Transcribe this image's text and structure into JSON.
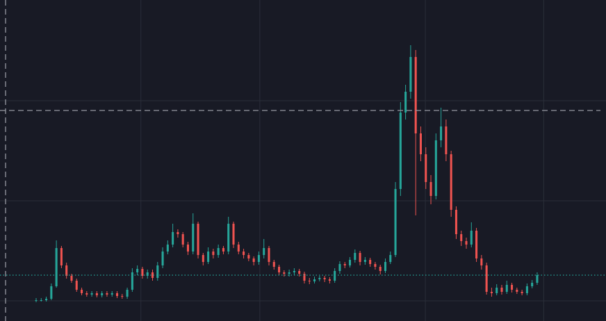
{
  "chart_data": {
    "type": "candlestick",
    "up_color": "#26a69a",
    "down_color": "#ef5350",
    "background": "#181a25",
    "grid_color": "#2a2e39",
    "xlim": [
      -7.14,
      112.6
    ],
    "ylim": [
      0,
      462
    ],
    "xgrid": [
      20.7,
      44.2,
      76.9,
      100.3
    ],
    "ygrid": [
      29,
      173,
      317
    ],
    "crosshair": {
      "x": -6.04,
      "y": 303
    },
    "price_line": 66,
    "open": [
      29,
      30,
      30,
      32,
      50,
      105,
      80,
      65,
      58,
      45,
      40,
      38,
      40,
      37,
      40,
      38,
      40,
      36,
      35,
      45,
      70,
      75,
      65,
      70,
      62,
      80,
      100,
      110,
      128,
      125,
      110,
      100,
      140,
      95,
      85,
      100,
      95,
      105,
      100,
      140,
      110,
      100,
      95,
      90,
      85,
      95,
      105,
      85,
      78,
      70,
      68,
      70,
      72,
      68,
      58,
      57,
      60,
      62,
      60,
      58,
      72,
      82,
      80,
      88,
      98,
      85,
      88,
      82,
      78,
      72,
      85,
      95,
      190,
      300,
      330,
      380,
      270,
      240,
      200,
      180,
      260,
      280,
      240,
      160,
      125,
      115,
      110,
      130,
      90,
      80,
      42,
      40,
      48,
      42,
      52,
      45,
      42,
      40,
      50,
      55
    ],
    "high": [
      33,
      33,
      35,
      54,
      116,
      108,
      84,
      68,
      61,
      48,
      43,
      43,
      43,
      43,
      43,
      43,
      43,
      39,
      48,
      76,
      80,
      78,
      74,
      74,
      85,
      106,
      116,
      140,
      132,
      128,
      114,
      155,
      143,
      98,
      106,
      104,
      110,
      108,
      150,
      143,
      114,
      104,
      98,
      93,
      100,
      118,
      108,
      88,
      81,
      73,
      74,
      76,
      75,
      71,
      62,
      64,
      65,
      65,
      63,
      76,
      86,
      85,
      92,
      103,
      101,
      92,
      91,
      85,
      81,
      90,
      100,
      200,
      315,
      340,
      397,
      390,
      280,
      250,
      210,
      270,
      307,
      290,
      245,
      165,
      130,
      120,
      142,
      134,
      95,
      84,
      48,
      53,
      52,
      58,
      55,
      48,
      45,
      54,
      59,
      70
    ],
    "low": [
      27,
      28,
      28,
      30,
      48,
      76,
      61,
      55,
      42,
      37,
      35,
      35,
      34,
      34,
      35,
      35,
      33,
      32,
      32,
      42,
      66,
      61,
      61,
      58,
      58,
      76,
      96,
      106,
      120,
      106,
      95,
      96,
      90,
      80,
      82,
      90,
      91,
      96,
      96,
      105,
      96,
      90,
      86,
      80,
      81,
      90,
      80,
      74,
      66,
      64,
      64,
      66,
      64,
      54,
      53,
      54,
      57,
      56,
      54,
      55,
      68,
      76,
      77,
      84,
      80,
      81,
      78,
      74,
      67,
      69,
      82,
      92,
      180,
      290,
      320,
      152,
      230,
      190,
      168,
      175,
      250,
      230,
      150,
      118,
      108,
      104,
      106,
      85,
      74,
      38,
      35,
      37,
      38,
      39,
      41,
      39,
      37,
      37,
      47,
      52
    ],
    "close": [
      30,
      30,
      32,
      50,
      105,
      80,
      65,
      58,
      45,
      40,
      38,
      40,
      37,
      40,
      38,
      40,
      36,
      35,
      45,
      70,
      75,
      65,
      70,
      62,
      80,
      100,
      110,
      128,
      125,
      110,
      100,
      140,
      95,
      85,
      100,
      95,
      105,
      100,
      140,
      110,
      100,
      95,
      90,
      85,
      95,
      105,
      85,
      78,
      70,
      68,
      70,
      72,
      68,
      58,
      57,
      60,
      62,
      60,
      58,
      72,
      82,
      80,
      88,
      98,
      85,
      88,
      82,
      78,
      72,
      85,
      95,
      190,
      300,
      330,
      380,
      270,
      240,
      200,
      180,
      260,
      280,
      240,
      160,
      125,
      115,
      110,
      130,
      90,
      80,
      42,
      40,
      48,
      42,
      52,
      45,
      42,
      40,
      50,
      55,
      66
    ]
  }
}
